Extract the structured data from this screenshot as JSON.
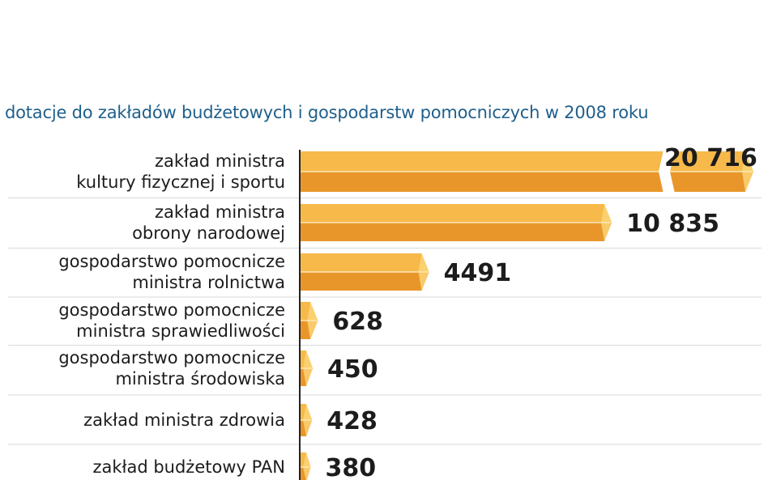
{
  "chart_data": {
    "type": "bar",
    "orientation": "horizontal",
    "title": "dotacje do zakładów budżetowych i gospodarstw pomocniczych w 2008 roku",
    "categories": [
      [
        "zakład ministra",
        "kultury fizycznej i sportu"
      ],
      [
        "zakład ministra",
        "obrony narodowej"
      ],
      [
        "gospodarstwo pomocnicze",
        "ministra rolnictwa"
      ],
      [
        "gospodarstwo pomocnicze",
        "ministra sprawiedliwości"
      ],
      [
        "gospodarstwo pomocnicze",
        "ministra środowiska"
      ],
      [
        "zakład ministra zdrowia"
      ],
      [
        "zakład budżetowy PAN"
      ]
    ],
    "values": [
      20716,
      10835,
      4491,
      628,
      450,
      428,
      380
    ],
    "value_labels": [
      "20 716",
      "10 835",
      "4491",
      "628",
      "450",
      "428",
      "380"
    ],
    "axis_break_on_largest": true,
    "grid": false,
    "colors": {
      "bar_top": "#f6b94a",
      "bar_bottom": "#e8962a",
      "bar_end": "#fbd476",
      "title": "#1f5f8b",
      "separator": "#d9d9d9",
      "axis": "#222222"
    }
  }
}
